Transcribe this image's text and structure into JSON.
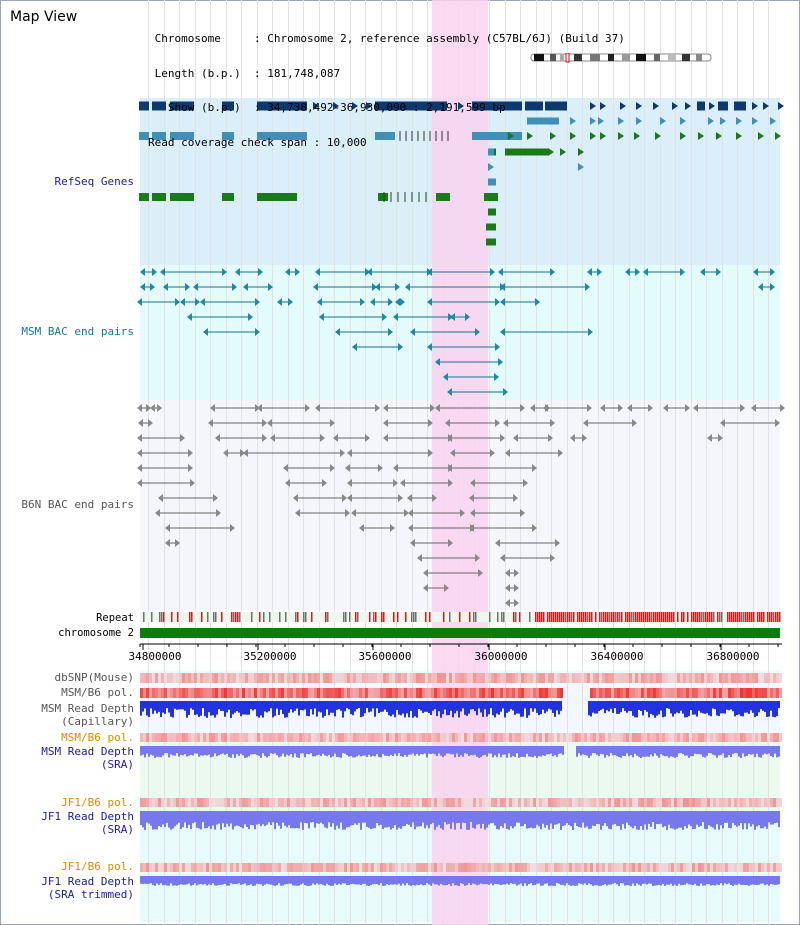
{
  "window": {
    "title": "Map View"
  },
  "header": {
    "chromosome_label": "Chromosome",
    "chromosome_value": "Chromosome 2, reference assembly (C57BL/6J) (Build 37)",
    "length_label": "Length (b.p.)",
    "length_value": "181,748,087",
    "show_label": "Show (b.p.)",
    "show_value": "34,738,492-36,930,090 : 2,191,599 bp",
    "coverage_label": "Read coverage check span",
    "coverage_value": "10,000"
  },
  "tracks": {
    "refseq": "RefSeq Genes",
    "msm_bac": "MSM BAC end pairs",
    "b6n_bac": "B6N BAC end pairs",
    "repeat": "Repeat",
    "chromosome": "chromosome 2",
    "dbsnp": "dbSNP(Mouse)",
    "msm_b6_pol_1": "MSM/B6 pol.",
    "msm_read_depth_cap_1": "MSM Read Depth",
    "msm_read_depth_cap_2": "(Capillary)",
    "msm_b6_pol_2": "MSM/B6 pol.",
    "msm_read_depth_sra_1": "MSM Read Depth",
    "msm_read_depth_sra_2": "(SRA)",
    "jf1_b6_pol_1": "JF1/B6 pol.",
    "jf1_read_depth_sra_1": "JF1 Read Depth",
    "jf1_read_depth_sra_2": "(SRA)",
    "jf1_b6_pol_2": "JF1/B6 pol.",
    "jf1_read_depth_trim_1": "JF1 Read Depth",
    "jf1_read_depth_trim_2": "(SRA trimmed)"
  },
  "axis": {
    "ticks": [
      "34800000",
      "35200000",
      "35600000",
      "36000000",
      "36400000",
      "36800000"
    ]
  },
  "colors": {
    "navy_label": "#1a1aa6",
    "teal_label": "#107a8c",
    "gray_label": "#555555",
    "orange_label": "#e08a00",
    "refseq_dark": "#0d3a6e",
    "refseq_mid": "#3f8fb8",
    "refseq_green": "#1a7a1a",
    "chrom_green": "#0f7a0f",
    "highlight": "#f9d2ee"
  }
}
